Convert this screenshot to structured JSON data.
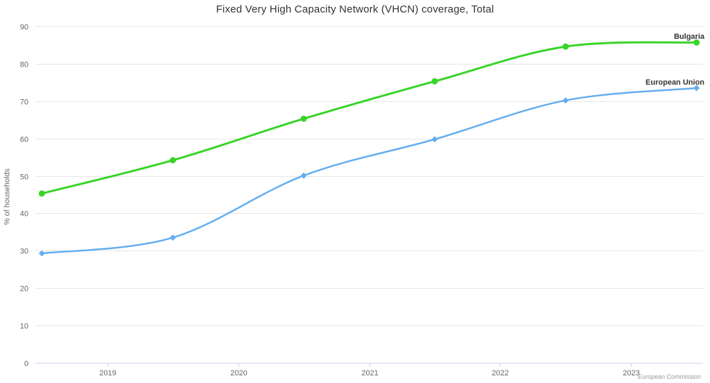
{
  "credits": "European Commission",
  "chart_data": {
    "type": "line",
    "title": "Fixed Very High Capacity Network (VHCN) coverage, Total",
    "xlabel": "",
    "ylabel": "% of households",
    "ylim": [
      0,
      90
    ],
    "y_ticks": [
      0,
      10,
      20,
      30,
      40,
      50,
      60,
      70,
      80,
      90
    ],
    "xlim": [
      2018.45,
      2023.55
    ],
    "x_ticks": [
      {
        "value": 2019,
        "label": "2019"
      },
      {
        "value": 2020,
        "label": "2020"
      },
      {
        "value": 2021,
        "label": "2021"
      },
      {
        "value": 2022,
        "label": "2022"
      },
      {
        "value": 2023,
        "label": "2023"
      }
    ],
    "grid": true,
    "line_shape": "spline",
    "legend_position": "labels-at-line-end",
    "series": [
      {
        "name": "Bulgaria",
        "color": "#38d428",
        "marker": "circle",
        "x": [
          2018.5,
          2019.5,
          2020.5,
          2021.5,
          2022.5,
          2023.5
        ],
        "values": [
          45.3,
          54.2,
          65.3,
          75.3,
          84.6,
          85.7
        ]
      },
      {
        "name": "European Union",
        "color": "#64aeef",
        "marker": "diamond",
        "x": [
          2018.5,
          2019.5,
          2020.5,
          2021.5,
          2022.5,
          2023.5
        ],
        "values": [
          29.3,
          33.5,
          50.1,
          59.8,
          70.2,
          73.5
        ]
      }
    ],
    "styles": {
      "grid_color": "#e6e6e6",
      "axis_color": "#ccd6eb",
      "tick_text_color": "#666666",
      "title_color": "#333333",
      "series_label_color": "#333333",
      "credits_color": "#999999",
      "background": "#ffffff"
    }
  }
}
